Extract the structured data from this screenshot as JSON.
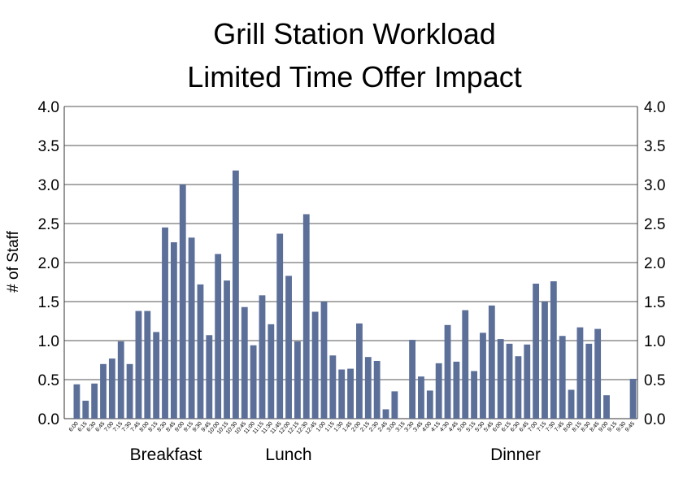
{
  "chart_data": {
    "type": "bar",
    "title": "Grill Station Workload",
    "subtitle": "Limited Time Offer Impact",
    "xlabel": "",
    "ylabel": "# of Staff",
    "ylim": [
      0,
      4.0
    ],
    "yticks": [
      "0.0",
      "0.5",
      "1.0",
      "1.5",
      "2.0",
      "2.5",
      "3.0",
      "3.5",
      "4.0"
    ],
    "grid": true,
    "bar_color": "#5b6f99",
    "sections": [
      "Breakfast",
      "Lunch",
      "Dinner"
    ],
    "categories": [
      "6:00",
      "6:15",
      "6:30",
      "6:45",
      "7:00",
      "7:15",
      "7:30",
      "7:45",
      "8:00",
      "8:15",
      "8:30",
      "8:45",
      "9:00",
      "9:15",
      "9:30",
      "9:45",
      "10:00",
      "10:15",
      "10:30",
      "10:45",
      "11:00",
      "11:15",
      "11:30",
      "11:45",
      "12:00",
      "12:15",
      "12:30",
      "12:45",
      "1:00",
      "1:15",
      "1:30",
      "1:45",
      "2:00",
      "2:15",
      "2:30",
      "2:45",
      "3:00",
      "3:15",
      "3:30",
      "3:45",
      "4:00",
      "4:15",
      "4:30",
      "4:45",
      "5:00",
      "5:15",
      "5:30",
      "5:45",
      "6:00",
      "6:15",
      "6:30",
      "6:45",
      "7:00",
      "7:15",
      "7:30",
      "7:45",
      "8:00",
      "8:15",
      "8:30",
      "8:45",
      "9:00",
      "9:15",
      "9:30",
      "9:45"
    ],
    "values": [
      0.44,
      0.23,
      0.45,
      0.7,
      0.77,
      0.99,
      0.7,
      1.38,
      1.38,
      1.11,
      2.45,
      2.26,
      3.0,
      2.32,
      1.72,
      1.07,
      2.11,
      1.77,
      3.18,
      1.43,
      0.94,
      1.58,
      1.21,
      2.37,
      1.83,
      0.99,
      2.62,
      1.37,
      1.5,
      0.81,
      0.63,
      0.64,
      1.22,
      0.79,
      0.74,
      0.12,
      0.35,
      0.0,
      1.01,
      0.54,
      0.36,
      0.71,
      1.2,
      0.73,
      1.39,
      0.61,
      1.1,
      1.45,
      1.02,
      0.96,
      0.8,
      0.95,
      1.73,
      1.5,
      1.76,
      1.06,
      0.37,
      1.17,
      0.96,
      1.15,
      0.3,
      0.0,
      0.0,
      0.51
    ]
  }
}
